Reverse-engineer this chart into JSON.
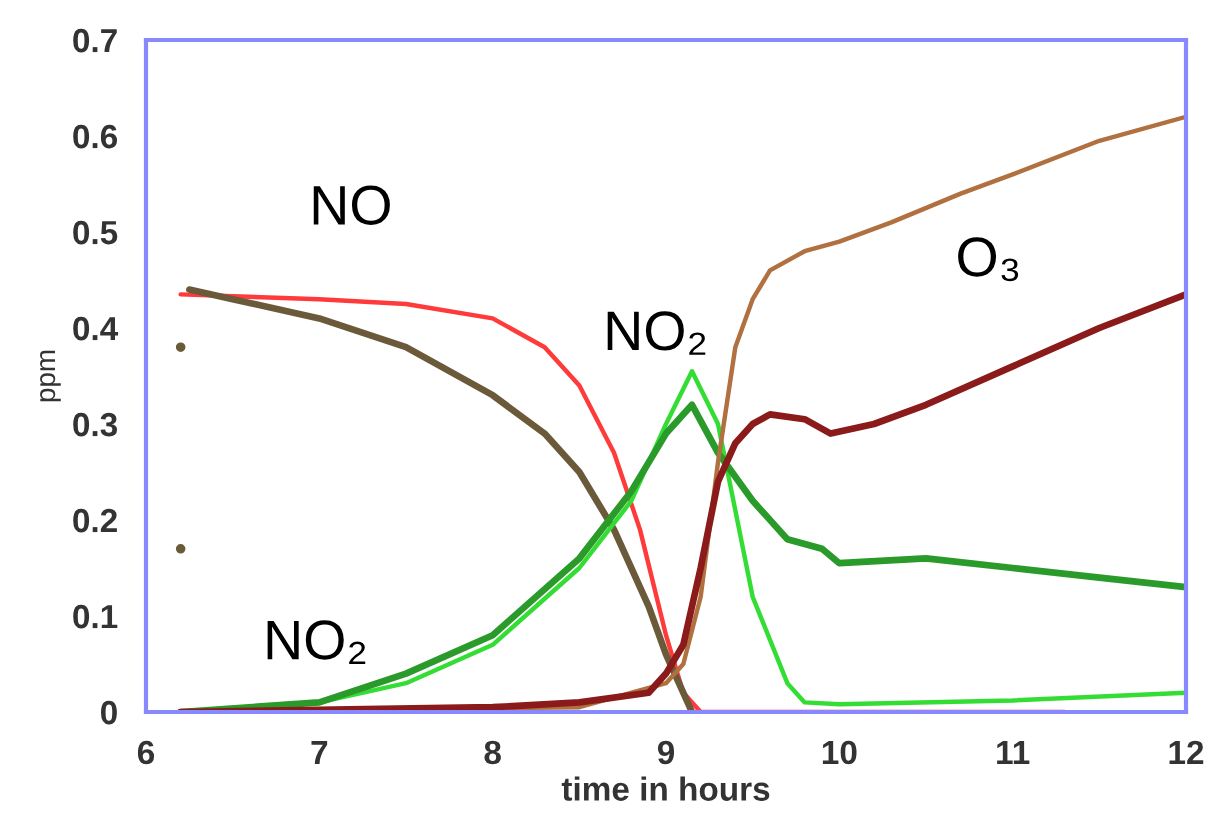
{
  "chart_data": {
    "type": "line",
    "xlabel": "time in hours",
    "ylabel": "ppm",
    "xlim": [
      6,
      12
    ],
    "xticks": [
      6,
      7,
      8,
      9,
      10,
      11,
      12
    ],
    "ylim": [
      0,
      0.7
    ],
    "yticks": [
      0,
      0.1,
      0.2,
      0.3,
      0.4,
      0.5,
      0.6,
      0.7
    ],
    "grid": false,
    "legend": false,
    "annotations": [
      "NO",
      "NO₂",
      "NO₂",
      "O₃"
    ],
    "series": [
      {
        "color": "#ff3a3a",
        "x": [
          6.2,
          7,
          7.5,
          8,
          8.3,
          8.5,
          8.7,
          8.85,
          9.0,
          9.1,
          9.2,
          11.3
        ],
        "values": [
          0.435,
          0.43,
          0.425,
          0.41,
          0.38,
          0.34,
          0.27,
          0.19,
          0.08,
          0.02,
          0.0,
          0.0
        ]
      },
      {
        "color": "#6b5a3a",
        "x": [
          6.25,
          6.5,
          7,
          7.5,
          8,
          8.3,
          8.5,
          8.7,
          8.9,
          9.0,
          9.1,
          9.15
        ],
        "values": [
          0.44,
          0.43,
          0.41,
          0.38,
          0.33,
          0.29,
          0.25,
          0.19,
          0.11,
          0.06,
          0.02,
          0.0
        ]
      },
      {
        "type": "scatter",
        "color": "#6b5a3a",
        "marker": "circle",
        "x": [
          6.2,
          6.2
        ],
        "values": [
          0.17,
          0.38
        ]
      },
      {
        "color": "#33dd33",
        "x": [
          6.2,
          7,
          7.5,
          8,
          8.5,
          8.8,
          9.0,
          9.15,
          9.3,
          9.5,
          9.7,
          9.8,
          10,
          11,
          12
        ],
        "values": [
          0,
          0.01,
          0.03,
          0.07,
          0.15,
          0.22,
          0.3,
          0.355,
          0.3,
          0.12,
          0.03,
          0.01,
          0.008,
          0.012,
          0.02
        ]
      },
      {
        "color": "#2a9a2a",
        "x": [
          6.2,
          7,
          7.5,
          8,
          8.5,
          8.8,
          9.0,
          9.15,
          9.3,
          9.5,
          9.7,
          9.9,
          10,
          10.5,
          11,
          11.5,
          12
        ],
        "values": [
          0,
          0.01,
          0.04,
          0.08,
          0.16,
          0.23,
          0.29,
          0.32,
          0.27,
          0.22,
          0.18,
          0.17,
          0.155,
          0.16,
          0.15,
          0.14,
          0.13
        ]
      },
      {
        "color": "#b07040",
        "x": [
          6.2,
          8.5,
          9,
          9.1,
          9.2,
          9.3,
          9.4,
          9.5,
          9.6,
          9.8,
          10,
          10.3,
          10.7,
          11,
          11.5,
          12
        ],
        "values": [
          0,
          0.005,
          0.03,
          0.05,
          0.12,
          0.26,
          0.38,
          0.43,
          0.46,
          0.48,
          0.49,
          0.51,
          0.54,
          0.56,
          0.595,
          0.62
        ]
      },
      {
        "color": "#8b1a1a",
        "x": [
          6.2,
          8,
          8.5,
          8.9,
          9.0,
          9.1,
          9.2,
          9.3,
          9.4,
          9.5,
          9.6,
          9.8,
          9.95,
          10.2,
          10.5,
          11,
          11.5,
          12
        ],
        "values": [
          0,
          0.005,
          0.01,
          0.02,
          0.04,
          0.07,
          0.15,
          0.24,
          0.28,
          0.3,
          0.31,
          0.305,
          0.29,
          0.3,
          0.32,
          0.36,
          0.4,
          0.435
        ]
      }
    ]
  }
}
